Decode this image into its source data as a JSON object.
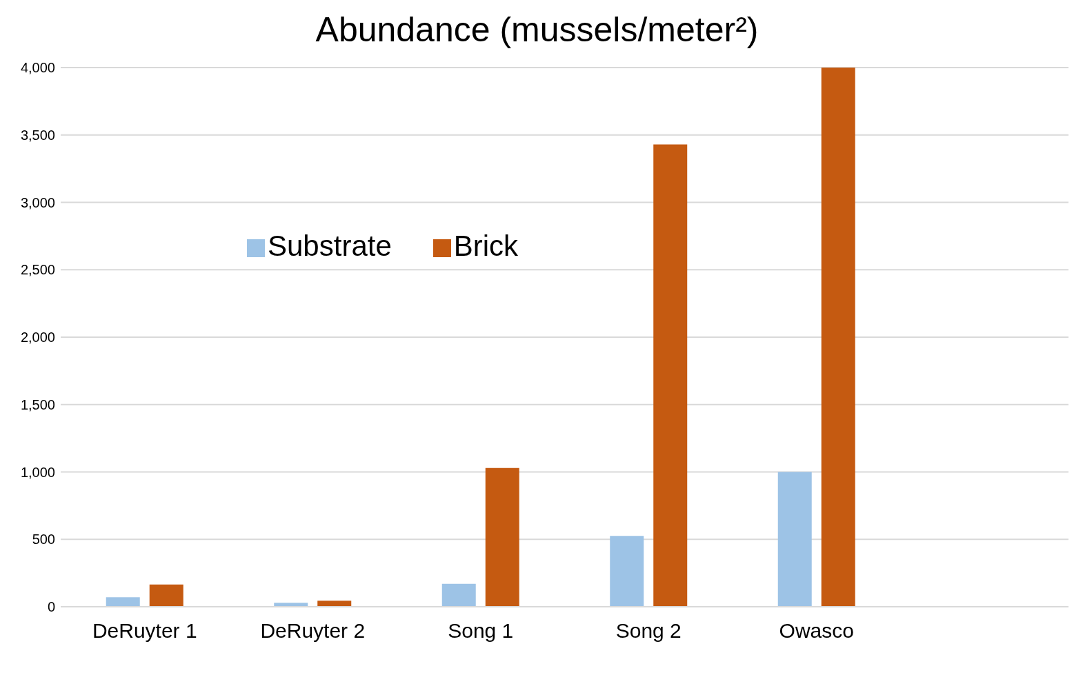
{
  "chart_data": {
    "type": "bar",
    "title": "Abundance (mussels/meter²)",
    "categories": [
      "DeRuyter 1",
      "DeRuyter 2",
      "Song 1",
      "Song 2",
      "Owasco",
      null
    ],
    "series": [
      {
        "name": "Substrate",
        "color": "#9dc3e6",
        "values": [
          70,
          30,
          170,
          525,
          1000,
          null
        ]
      },
      {
        "name": "Brick",
        "color": "#c55a11",
        "values": [
          165,
          45,
          1030,
          3430,
          4000,
          null
        ]
      }
    ],
    "ylim": [
      0,
      4000
    ],
    "yticks": [
      {
        "value": 0,
        "label": "0"
      },
      {
        "value": 500,
        "label": "500"
      },
      {
        "value": 1000,
        "label": "1,000"
      },
      {
        "value": 1500,
        "label": "1,500"
      },
      {
        "value": 2000,
        "label": "2,000"
      },
      {
        "value": 2500,
        "label": "2,500"
      },
      {
        "value": 3000,
        "label": "3,000"
      },
      {
        "value": 3500,
        "label": "3,500"
      },
      {
        "value": 4000,
        "label": "4,000"
      }
    ],
    "grid": "y",
    "legend": "top left"
  }
}
